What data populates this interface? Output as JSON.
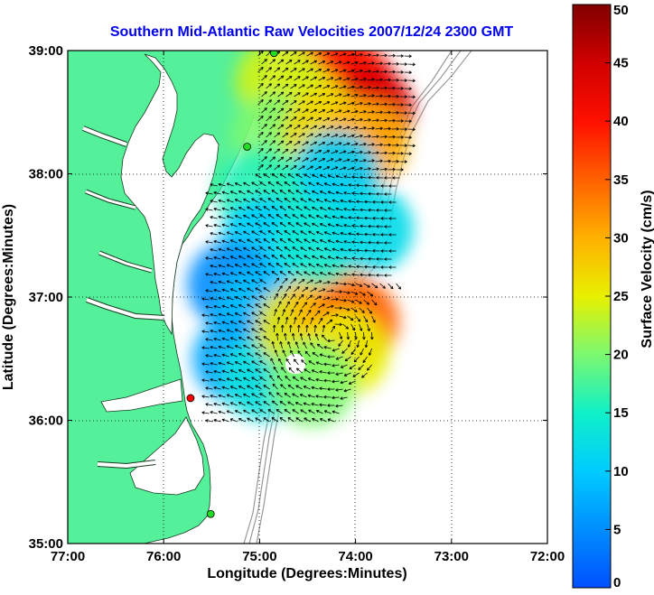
{
  "chart_data": {
    "type": "heatmap",
    "title": "Southern Mid-Atlantic Raw Velocities 2007/12/24 2300 GMT",
    "xlabel": "Longitude (Degrees:Minutes)",
    "ylabel": "Latitude (Degrees:Minutes)",
    "xlim": [
      -77,
      -72
    ],
    "ylim": [
      35,
      39
    ],
    "x_ticks": [
      -77,
      -76,
      -75,
      -74,
      -73,
      -72
    ],
    "x_tick_labels": [
      "77:00",
      "76:00",
      "75:00",
      "74:00",
      "73:00",
      "72:00"
    ],
    "y_ticks": [
      35,
      36,
      37,
      38,
      39
    ],
    "y_tick_labels": [
      "35:00",
      "36:00",
      "37:00",
      "38:00",
      "39:00"
    ],
    "grid": true,
    "colorbar": {
      "label": "Surface Velocity (cm/s)",
      "range": [
        0,
        50
      ],
      "ticks": [
        0,
        5,
        10,
        15,
        20,
        25,
        30,
        35,
        40,
        45,
        50
      ],
      "colormap": "jet"
    },
    "land_color": "#55f09a",
    "arrow_color": "#000000",
    "speed_field": [
      {
        "lon": -74.25,
        "lat": 38.85,
        "speed": 37
      },
      {
        "lon": -74.05,
        "lat": 38.72,
        "speed": 40
      },
      {
        "lon": -73.85,
        "lat": 38.52,
        "speed": 44
      },
      {
        "lon": -74.55,
        "lat": 38.55,
        "speed": 26
      },
      {
        "lon": -74.8,
        "lat": 38.75,
        "speed": 24
      },
      {
        "lon": -74.85,
        "lat": 38.3,
        "speed": 20
      },
      {
        "lon": -74.3,
        "lat": 38.35,
        "speed": 27
      },
      {
        "lon": -73.9,
        "lat": 38.25,
        "speed": 30
      },
      {
        "lon": -74.2,
        "lat": 38.0,
        "speed": 10
      },
      {
        "lon": -74.5,
        "lat": 37.75,
        "speed": 11
      },
      {
        "lon": -75.0,
        "lat": 37.85,
        "speed": 16
      },
      {
        "lon": -74.95,
        "lat": 37.45,
        "speed": 10
      },
      {
        "lon": -75.3,
        "lat": 37.1,
        "speed": 5
      },
      {
        "lon": -75.0,
        "lat": 36.9,
        "speed": 9
      },
      {
        "lon": -75.25,
        "lat": 36.5,
        "speed": 7
      },
      {
        "lon": -74.95,
        "lat": 36.35,
        "speed": 13
      },
      {
        "lon": -74.6,
        "lat": 36.75,
        "speed": 26
      },
      {
        "lon": -74.25,
        "lat": 36.95,
        "speed": 29
      },
      {
        "lon": -74.0,
        "lat": 36.8,
        "speed": 35
      },
      {
        "lon": -74.1,
        "lat": 36.55,
        "speed": 25
      },
      {
        "lon": -74.45,
        "lat": 36.3,
        "speed": 20
      },
      {
        "lon": -74.4,
        "lat": 37.45,
        "speed": 14
      },
      {
        "lon": -73.85,
        "lat": 37.55,
        "speed": 12
      }
    ],
    "stations": [
      {
        "lon": -74.85,
        "lat": 38.98,
        "status": "green"
      },
      {
        "lon": -75.13,
        "lat": 38.22,
        "status": "green"
      },
      {
        "lon": -75.72,
        "lat": 36.18,
        "status": "red"
      },
      {
        "lon": -75.51,
        "lat": 35.24,
        "status": "green"
      }
    ]
  }
}
